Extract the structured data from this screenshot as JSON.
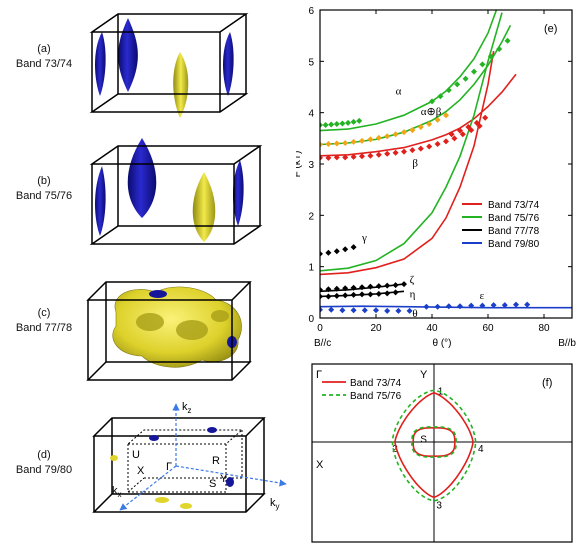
{
  "panels": {
    "a": {
      "letter": "(a)",
      "band": "Band 73/74"
    },
    "b": {
      "letter": "(b)",
      "band": "Band 75/76"
    },
    "c": {
      "letter": "(c)",
      "band": "Band 77/78"
    },
    "d": {
      "letter": "(d)",
      "band": "Band 79/80"
    }
  },
  "bz_labels": {
    "kz": "k",
    "kz_sub": "z",
    "kx": "k",
    "kx_sub": "x",
    "ky": "k",
    "ky_sub": "y",
    "U": "U",
    "R": "R",
    "X": "X",
    "Gamma": "Γ",
    "S": "S",
    "Y": "Y"
  },
  "colors": {
    "band_73_74": "#e0201c",
    "band_75_76": "#23b323",
    "band_77_78": "#000000",
    "band_79_80": "#1b3fc9",
    "orange": "#f3a316",
    "fs_yellow": "#e0d52a",
    "fs_blue": "#16169a",
    "axis_blue": "#3d7ae6"
  },
  "chart_data": [
    {
      "panel": "(e)",
      "type": "line",
      "xlabel": "θ (°)",
      "ylabel": "F (kT)",
      "xlim": [
        0,
        90
      ],
      "ylim": [
        0,
        6
      ],
      "x_ticks": [
        0,
        20,
        40,
        60,
        80
      ],
      "y_ticks": [
        0,
        1,
        2,
        3,
        4,
        5,
        6
      ],
      "x_end_labels": {
        "left": "B//c",
        "right": "B//b"
      },
      "legend_position": "right-middle",
      "series": [
        {
          "name": "Band 73/74",
          "color": "#e0201c",
          "branch": "β",
          "x": [
            0,
            10,
            20,
            30,
            40,
            45,
            50,
            55,
            60,
            65,
            70
          ],
          "y": [
            3.16,
            3.18,
            3.24,
            3.32,
            3.47,
            3.57,
            3.7,
            3.88,
            4.12,
            4.4,
            4.75
          ]
        },
        {
          "name": "Band 73/74",
          "color": "#e0201c",
          "branch": "α",
          "x": [
            0,
            10,
            20,
            30,
            40,
            45,
            50,
            55,
            60,
            62
          ],
          "y": [
            0.85,
            0.88,
            0.98,
            1.15,
            1.55,
            1.95,
            2.55,
            3.35,
            4.55,
            5.2
          ]
        },
        {
          "name": "Band 75/76",
          "color": "#23b323",
          "branch": "α",
          "x": [
            0,
            10,
            20,
            30,
            40,
            45,
            50,
            55,
            60,
            63
          ],
          "y": [
            3.65,
            3.68,
            3.78,
            3.95,
            4.22,
            4.42,
            4.7,
            5.05,
            5.55,
            6.0
          ]
        },
        {
          "name": "Band 75/76",
          "color": "#23b323",
          "branch": "γ",
          "x": [
            0,
            10,
            20,
            30,
            40,
            45,
            50,
            55,
            60,
            65
          ],
          "y": [
            0.92,
            0.97,
            1.12,
            1.45,
            2.05,
            2.55,
            3.15,
            3.95,
            5.0,
            5.95
          ]
        },
        {
          "name": "Band 75/76",
          "color": "#23b323",
          "branch": "α⊕β",
          "x": [
            0,
            10,
            20,
            30,
            40,
            45,
            50,
            55,
            60,
            65,
            68
          ],
          "y": [
            3.38,
            3.41,
            3.48,
            3.62,
            3.85,
            4.02,
            4.25,
            4.55,
            4.92,
            5.38,
            5.7
          ]
        },
        {
          "name": "Band 77/78",
          "color": "#000000",
          "branch": "ζ",
          "x": [
            0,
            10,
            20,
            30
          ],
          "y": [
            0.52,
            0.55,
            0.6,
            0.66
          ]
        },
        {
          "name": "Band 77/78",
          "color": "#000000",
          "branch": "η",
          "x": [
            0,
            10,
            20,
            30
          ],
          "y": [
            0.42,
            0.44,
            0.47,
            0.52
          ]
        },
        {
          "name": "Band 79/80",
          "color": "#1b3fc9",
          "branch": "ε",
          "x": [
            0,
            15,
            30,
            45,
            60,
            75,
            90
          ],
          "y": [
            0.22,
            0.23,
            0.22,
            0.21,
            0.2,
            0.2,
            0.2
          ]
        }
      ],
      "markers": [
        {
          "label": "α",
          "color": "#23b323",
          "x": [
            0,
            2,
            4,
            6,
            8,
            10,
            12,
            14
          ],
          "y": [
            3.76,
            3.76,
            3.77,
            3.78,
            3.79,
            3.8,
            3.82,
            3.84
          ]
        },
        {
          "label": "α",
          "color": "#23b323",
          "x": [
            40,
            43,
            46,
            49,
            52,
            55,
            58,
            61,
            64,
            67
          ],
          "y": [
            4.22,
            4.32,
            4.44,
            4.55,
            4.66,
            4.8,
            4.94,
            5.1,
            5.24,
            5.4
          ]
        },
        {
          "label": "α⊕β",
          "color": "#f3a316",
          "x": [
            0,
            3,
            6,
            9,
            12,
            15,
            18,
            21,
            24,
            27,
            30,
            33,
            36,
            39,
            42,
            45
          ],
          "y": [
            3.38,
            3.39,
            3.4,
            3.41,
            3.43,
            3.45,
            3.48,
            3.51,
            3.54,
            3.58,
            3.62,
            3.66,
            3.72,
            3.78,
            3.86,
            3.95
          ]
        },
        {
          "label": "β",
          "color": "#e0201c",
          "x": [
            0,
            3,
            6,
            9,
            12,
            15,
            18,
            21,
            24,
            27,
            30,
            33,
            36,
            39,
            42,
            45,
            48,
            51,
            54,
            57
          ],
          "y": [
            3.12,
            3.12,
            3.13,
            3.13,
            3.14,
            3.15,
            3.16,
            3.18,
            3.2,
            3.22,
            3.24,
            3.27,
            3.3,
            3.34,
            3.39,
            3.44,
            3.5,
            3.58,
            3.66,
            3.74
          ]
        },
        {
          "label": "β",
          "color": "#e0201c",
          "x": [
            47,
            50,
            53,
            56,
            59
          ],
          "y": [
            3.58,
            3.65,
            3.72,
            3.8,
            3.9
          ]
        },
        {
          "label": "γ",
          "color": "#000000",
          "x": [
            0,
            3,
            6,
            9,
            12
          ],
          "y": [
            1.25,
            1.27,
            1.3,
            1.34,
            1.38
          ]
        },
        {
          "label": "ζ",
          "color": "#000000",
          "x": [
            0,
            3,
            6,
            9,
            12,
            15,
            18,
            21,
            24,
            27,
            30
          ],
          "y": [
            0.55,
            0.56,
            0.57,
            0.58,
            0.59,
            0.6,
            0.61,
            0.62,
            0.63,
            0.64,
            0.66
          ]
        },
        {
          "label": "η",
          "color": "#000000",
          "x": [
            0,
            3,
            6,
            9,
            12,
            15,
            18,
            21,
            24,
            27
          ],
          "y": [
            0.42,
            0.42,
            0.43,
            0.44,
            0.45,
            0.46,
            0.46,
            0.47,
            0.48,
            0.5
          ]
        },
        {
          "label": "ε",
          "color": "#1b3fc9",
          "x": [
            38,
            42,
            46,
            50,
            54,
            58,
            62,
            66,
            70,
            74
          ],
          "y": [
            0.22,
            0.22,
            0.23,
            0.23,
            0.24,
            0.24,
            0.25,
            0.25,
            0.26,
            0.26
          ]
        },
        {
          "label": "θ",
          "color": "#1b3fc9",
          "x": [
            0,
            4,
            8,
            12,
            16,
            20,
            24,
            28,
            32
          ],
          "y": [
            0.16,
            0.16,
            0.15,
            0.15,
            0.15,
            0.15,
            0.14,
            0.14,
            0.14
          ]
        }
      ],
      "annotations": [
        {
          "text": "α",
          "x": 27,
          "y": 4.35
        },
        {
          "text": "α⊕β",
          "x": 36,
          "y": 3.95
        },
        {
          "text": "β",
          "x": 33,
          "y": 2.95
        },
        {
          "text": "γ",
          "x": 15,
          "y": 1.5
        },
        {
          "text": "ζ",
          "x": 32,
          "y": 0.68
        },
        {
          "text": "η",
          "x": 32,
          "y": 0.4
        },
        {
          "text": "ε",
          "x": 57,
          "y": 0.37
        },
        {
          "text": "θ",
          "x": 33,
          "y": 0.02
        }
      ],
      "legend": [
        {
          "name": "Band 73/74",
          "color": "#e0201c"
        },
        {
          "name": "Band 75/76",
          "color": "#23b323"
        },
        {
          "name": "Band 77/78",
          "color": "#000000"
        },
        {
          "name": "Band 79/80",
          "color": "#1b3fc9"
        }
      ]
    },
    {
      "panel": "(f)",
      "type": "line",
      "xlim": [
        -1,
        1
      ],
      "ylim": [
        -1,
        1
      ],
      "corner_label": "Γ",
      "axis_labels": {
        "left": "X",
        "top": "Y"
      },
      "point_labels": [
        {
          "text": "1",
          "x": 0.05,
          "y": 0.58
        },
        {
          "text": "2",
          "x": -0.3,
          "y": -0.07
        },
        {
          "text": "3",
          "x": 0.04,
          "y": -0.7
        },
        {
          "text": "4",
          "x": 0.36,
          "y": -0.07
        },
        {
          "text": "S",
          "x": -0.08,
          "y": 0.04
        }
      ],
      "legend": [
        {
          "name": "Band 73/74",
          "color": "#e0201c",
          "style": "solid"
        },
        {
          "name": "Band 75/76",
          "color": "#23b323",
          "style": "dashed"
        }
      ],
      "series": [
        {
          "name": "Band 73/74",
          "kind": "outer",
          "rx": 0.3,
          "ry_top": 0.55,
          "ry_bottom": 0.62,
          "shape": 1.4
        },
        {
          "name": "Band 75/76",
          "kind": "outer",
          "rx": 0.32,
          "ry_top": 0.58,
          "ry_bottom": 0.66,
          "shape": 1.6
        },
        {
          "name": "Band 73/74",
          "kind": "inner",
          "rx": 0.16,
          "ry_top": 0.16,
          "ry_bottom": 0.16,
          "shape": 3.0
        },
        {
          "name": "Band 75/76",
          "kind": "inner",
          "rx": 0.17,
          "ry_top": 0.17,
          "ry_bottom": 0.17,
          "shape": 3.0
        }
      ]
    }
  ]
}
